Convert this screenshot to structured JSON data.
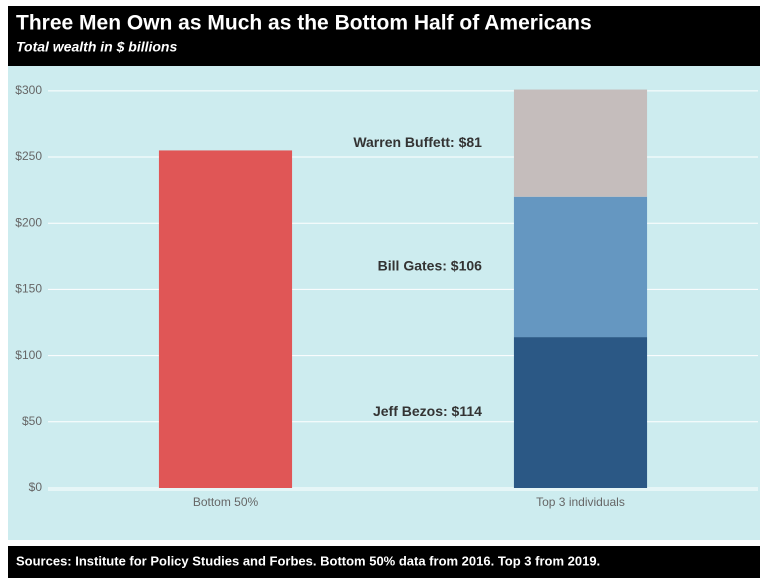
{
  "chart_data": {
    "type": "stacked_bar",
    "title": "Three Men Own as Much as the Bottom Half of Americans",
    "subtitle": "Total wealth in $ billions",
    "source": "Sources: Institute for Policy Studies and Forbes. Bottom 50% data from 2016. Top 3 from 2019.",
    "categories": [
      "Bottom 50%",
      "Top 3 individuals"
    ],
    "series": [
      {
        "color": "#e05656",
        "values": [
          255,
          null
        ]
      },
      {
        "color": "#2b5885",
        "values": [
          null,
          114
        ],
        "value_labels": [
          null,
          "Jeff Bezos: $114"
        ]
      },
      {
        "color": "#6597c1",
        "values": [
          null,
          106
        ],
        "value_labels": [
          null,
          "Bill Gates: $106"
        ]
      },
      {
        "color": "#c5bdbc",
        "values": [
          null,
          81
        ],
        "value_labels": [
          null,
          "Warren Buffett: $81"
        ]
      }
    ],
    "ylim": [
      0,
      315
    ],
    "yticks": [
      {
        "value": 0,
        "label": "$0"
      },
      {
        "value": 50,
        "label": "$50"
      },
      {
        "value": 100,
        "label": "$100"
      },
      {
        "value": 150,
        "label": "$150"
      },
      {
        "value": 200,
        "label": "$200"
      },
      {
        "value": 250,
        "label": "$250"
      },
      {
        "value": 300,
        "label": "$300"
      }
    ],
    "grid": true
  }
}
